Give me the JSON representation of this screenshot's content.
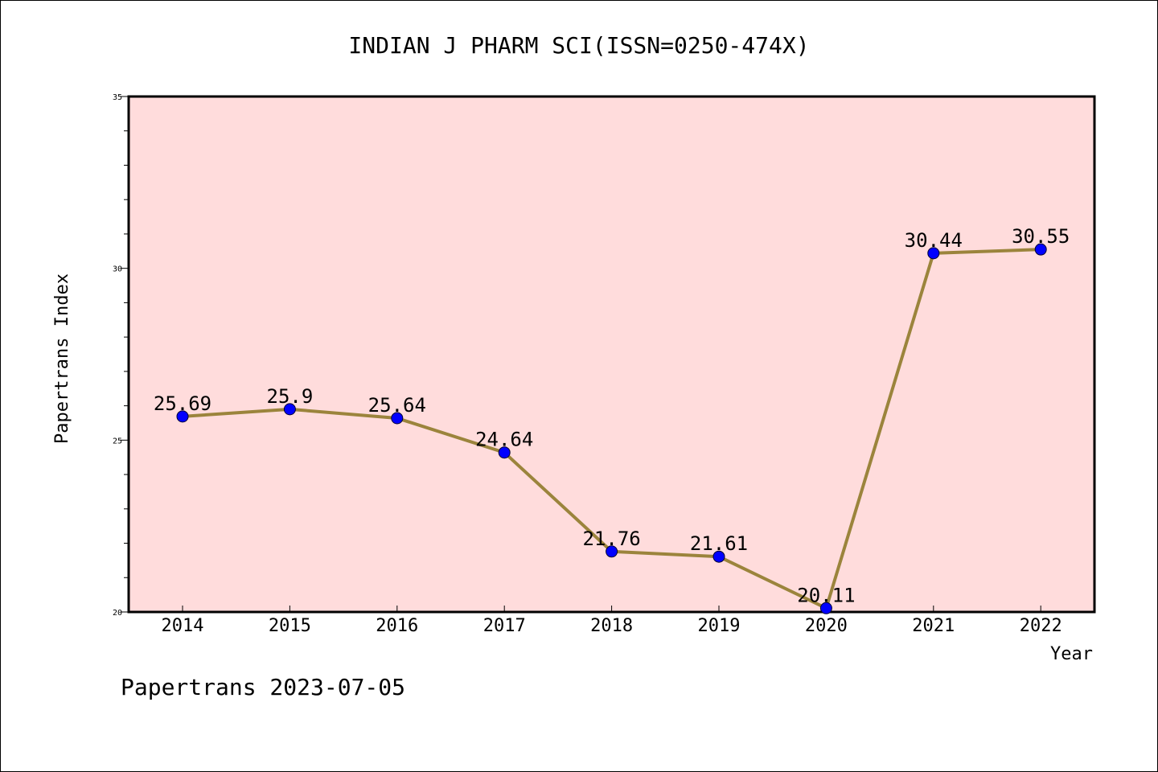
{
  "chart_data": {
    "type": "line",
    "title": "INDIAN J PHARM SCI(ISSN=0250-474X)",
    "xlabel": "Year",
    "ylabel": "Papertrans Index",
    "x": [
      "2014",
      "2015",
      "2016",
      "2017",
      "2018",
      "2019",
      "2020",
      "2021",
      "2022"
    ],
    "values": [
      25.69,
      25.9,
      25.64,
      24.64,
      21.76,
      21.61,
      20.11,
      30.44,
      30.55
    ],
    "data_labels": [
      "25.69",
      "25.9",
      "25.64",
      "24.64",
      "21.76",
      "21.61",
      "20.11",
      "30.44",
      "30.55"
    ],
    "ylim": [
      20,
      35
    ],
    "yticks": [
      "20",
      "25",
      "30",
      "35"
    ],
    "grid": false,
    "colors": {
      "plot_background": "#ffdcdc",
      "line": "#9b843c",
      "marker": "#0000ff"
    }
  },
  "footer": "Papertrans 2023-07-05"
}
